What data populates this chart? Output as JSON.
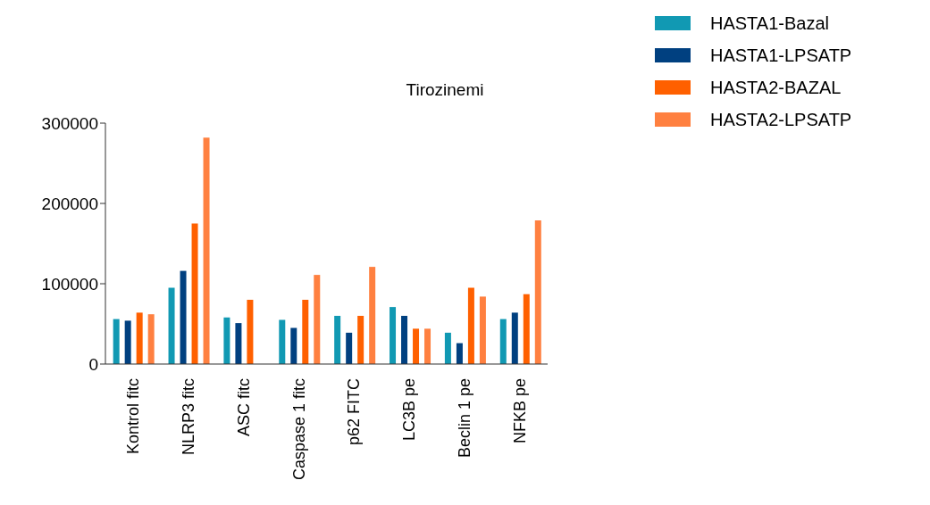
{
  "chart_data": {
    "type": "bar",
    "title": "Tirozinemi",
    "categories": [
      "Kontrol fitc",
      "NLRP3 fitc",
      "ASC fitc",
      "Caspase 1 fitc",
      "p62 FITC",
      "LC3B pe",
      "Beclin 1 pe",
      "NFKB pe"
    ],
    "series": [
      {
        "name": "HASTA1-Bazal",
        "color": "#1199b3",
        "values": [
          56000,
          95000,
          58000,
          55000,
          60000,
          71000,
          39000,
          56000
        ]
      },
      {
        "name": "HASTA1-LPSATP",
        "color": "#004080",
        "values": [
          54000,
          116000,
          51000,
          45000,
          39000,
          60000,
          26000,
          64000
        ]
      },
      {
        "name": "HASTA2-BAZAL",
        "color": "#ff6000",
        "values": [
          64000,
          175000,
          80000,
          80000,
          60000,
          44000,
          95000,
          87000
        ]
      },
      {
        "name": "HASTA2-LPSATP",
        "color": "#ff8040",
        "values": [
          62000,
          282000,
          null,
          111000,
          121000,
          44000,
          84000,
          179000
        ]
      }
    ],
    "ylim": [
      0,
      300000
    ],
    "yticks": [
      0,
      100000,
      200000,
      300000
    ],
    "grid": false,
    "legend": "top right"
  }
}
